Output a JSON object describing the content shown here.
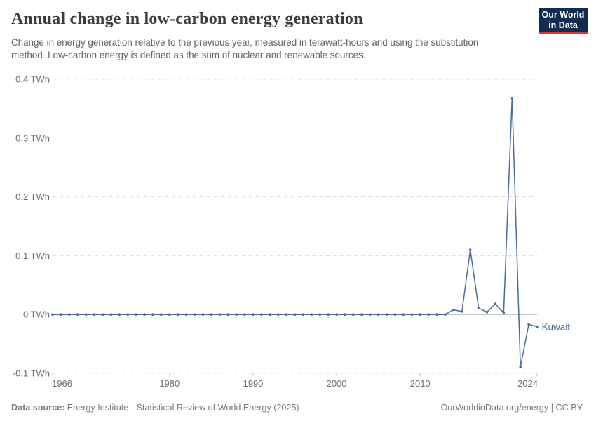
{
  "header": {
    "title": "Annual change in low-carbon energy generation",
    "subtitle": "Change in energy generation relative to the previous year, measured in terawatt-hours and using the substitution method. Low-carbon energy is defined as the sum of nuclear and renewable sources."
  },
  "logo": {
    "line1": "Our World",
    "line2": "in Data",
    "bg_color": "#122b52",
    "accent_color": "#d93a35"
  },
  "footer": {
    "source_label": "Data source:",
    "source_text": " Energy Institute - Statistical Review of World Energy (2025)",
    "credit": "OurWorldinData.org/energy | CC BY"
  },
  "chart_data": {
    "type": "line",
    "title": "Annual change in low-carbon energy generation",
    "unit": "TWh",
    "xlim": [
      1966,
      2024
    ],
    "ylim": [
      -0.1,
      0.4
    ],
    "grid": "horizontal-dashed",
    "legend_position": "end-of-line-label",
    "x_ticks": [
      1966,
      1980,
      1990,
      2000,
      2010,
      2024
    ],
    "y_ticks": [
      {
        "value": 0.4,
        "label": "0.4 TWh"
      },
      {
        "value": 0.3,
        "label": "0.3 TWh"
      },
      {
        "value": 0.2,
        "label": "0.2 TWh"
      },
      {
        "value": 0.1,
        "label": "0.1 TWh"
      },
      {
        "value": 0,
        "label": "0 TWh"
      },
      {
        "value": -0.1,
        "label": "-0.1 TWh"
      }
    ],
    "x": [
      1966,
      1967,
      1968,
      1969,
      1970,
      1971,
      1972,
      1973,
      1974,
      1975,
      1976,
      1977,
      1978,
      1979,
      1980,
      1981,
      1982,
      1983,
      1984,
      1985,
      1986,
      1987,
      1988,
      1989,
      1990,
      1991,
      1992,
      1993,
      1994,
      1995,
      1996,
      1997,
      1998,
      1999,
      2000,
      2001,
      2002,
      2003,
      2004,
      2005,
      2006,
      2007,
      2008,
      2009,
      2010,
      2011,
      2012,
      2013,
      2014,
      2015,
      2016,
      2017,
      2018,
      2019,
      2020,
      2021,
      2022,
      2023,
      2024
    ],
    "series": [
      {
        "name": "Kuwait",
        "color": "#4c6a9c",
        "values": [
          0,
          0,
          0,
          0,
          0,
          0,
          0,
          0,
          0,
          0,
          0,
          0,
          0,
          0,
          0,
          0,
          0,
          0,
          0,
          0,
          0,
          0,
          0,
          0,
          0,
          0,
          0,
          0,
          0,
          0,
          0,
          0,
          0,
          0,
          0,
          0,
          0,
          0,
          0,
          0,
          0,
          0,
          0,
          0,
          0,
          0,
          0,
          0,
          0.008,
          0.005,
          0.11,
          0.011,
          0.004,
          0.018,
          0.003,
          0.368,
          -0.089,
          -0.017,
          -0.021
        ]
      }
    ],
    "axis_color": "#b3b3b3",
    "gridline_color": "#dcdcdc",
    "tick_label_color": "#6e6e6e"
  }
}
